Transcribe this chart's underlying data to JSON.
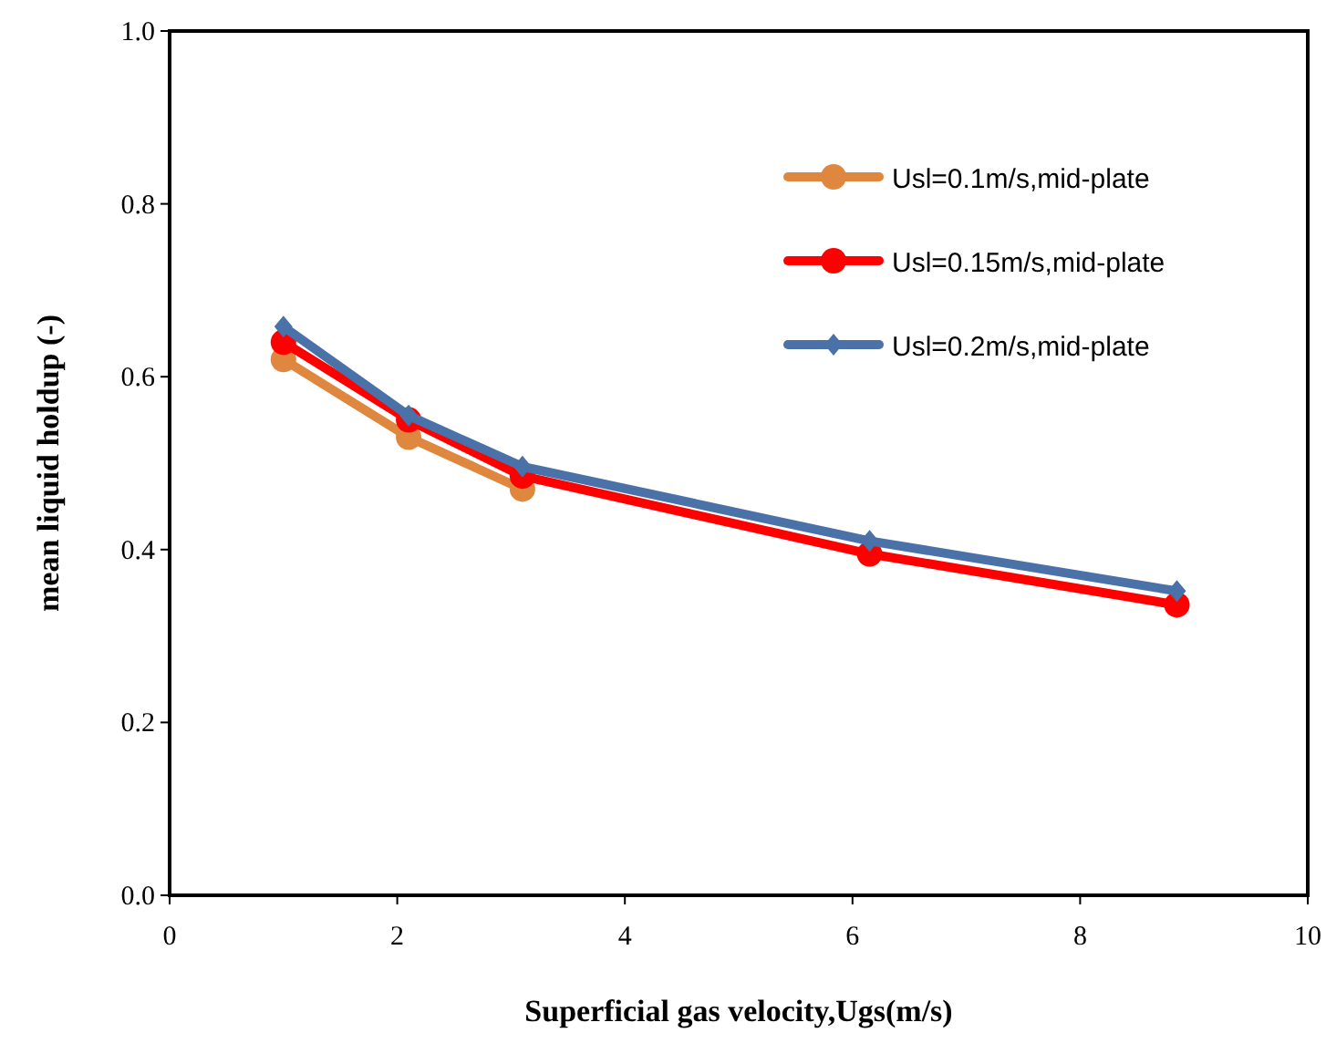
{
  "chart_data": {
    "type": "line",
    "xlabel": "Superficial gas velocity,Ugs(m/s)",
    "ylabel": "mean liquid holdup (-)",
    "xlim": [
      0,
      10
    ],
    "xticks": [
      0,
      2,
      4,
      6,
      8,
      10
    ],
    "ylim": [
      0,
      1
    ],
    "yticks": [
      {
        "value": 0,
        "label": "0.0"
      },
      0.2,
      0.4,
      0.6,
      0.8,
      {
        "value": 1,
        "label": "1.0"
      }
    ],
    "grid": false,
    "legend": "top right",
    "line_style": "solid",
    "series": [
      {
        "name": "Usl=0.1m/s,mid-plate",
        "color": "#e0873f",
        "marker": "circle",
        "x": [
          1.0,
          2.1,
          3.1
        ],
        "values": [
          0.62,
          0.53,
          0.47
        ]
      },
      {
        "name": "Usl=0.15m/s,mid-plate",
        "color": "#ff0000",
        "marker": "circle",
        "x": [
          1.0,
          2.1,
          3.1,
          6.15,
          8.85
        ],
        "values": [
          0.64,
          0.55,
          0.485,
          0.395,
          0.336
        ]
      },
      {
        "name": "Usl=0.2m/s,mid-plate",
        "color": "#4a72a8",
        "marker": "diamond",
        "x": [
          1.0,
          2.1,
          3.1,
          6.15,
          8.85
        ],
        "values": [
          0.658,
          0.555,
          0.496,
          0.41,
          0.352
        ]
      }
    ]
  }
}
